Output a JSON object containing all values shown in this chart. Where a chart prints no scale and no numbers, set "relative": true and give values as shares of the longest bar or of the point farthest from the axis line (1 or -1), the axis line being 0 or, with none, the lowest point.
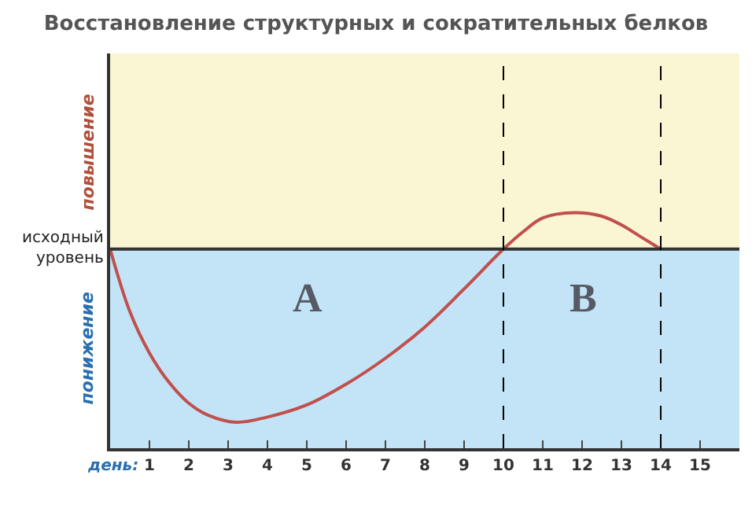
{
  "chart_data": {
    "type": "line",
    "title": "Восстановление структурных и сократительных белков",
    "xlabel": "день:",
    "relative": true,
    "x": [
      0,
      0.5,
      1,
      1.5,
      2,
      2.5,
      3.2,
      4,
      5,
      6,
      7,
      8,
      9,
      10,
      10.5,
      11,
      11.8,
      12.5,
      13,
      13.5,
      14
    ],
    "series": [
      {
        "color": "#c0504d",
        "values": [
          0,
          -0.36,
          -0.6,
          -0.77,
          -0.89,
          -0.96,
          -1,
          -0.97,
          -0.9,
          -0.78,
          -0.63,
          -0.45,
          -0.23,
          0,
          0.1,
          0.18,
          0.21,
          0.19,
          0.14,
          0.07,
          0
        ]
      }
    ],
    "xlim": [
      0,
      16
    ],
    "xticks": [
      1,
      2,
      3,
      4,
      5,
      6,
      7,
      8,
      9,
      10,
      11,
      12,
      13,
      14,
      15
    ],
    "bands": [
      {
        "axis": "y",
        "from": 0,
        "to": 1.13,
        "label": "повышение",
        "color": "#faf5d2"
      },
      {
        "axis": "y",
        "from": -1.15,
        "to": 0,
        "label": "понижение",
        "color": "#c3e4f6"
      }
    ],
    "ref_lines": [
      {
        "axis": "y",
        "value": 0,
        "label": "исходный уровень",
        "color": "#333333",
        "line_style": "solid"
      },
      {
        "axis": "x",
        "value": 10,
        "label": null,
        "color": "#000000",
        "line_style": "dashed"
      },
      {
        "axis": "x",
        "value": 14,
        "label": null,
        "color": "#000000",
        "line_style": "dashed"
      }
    ],
    "annotations": [
      "A",
      "B"
    ],
    "grid": false,
    "line_style": "solid",
    "marker": "none"
  }
}
